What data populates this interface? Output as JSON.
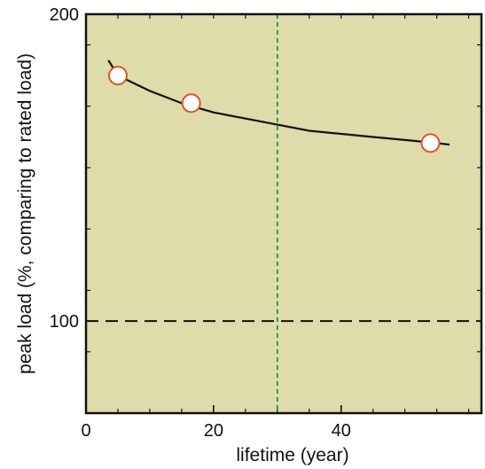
{
  "chart_data": {
    "type": "line",
    "xlabel": "lifetime (year)",
    "ylabel": "peak load (%, comparing to rated load)",
    "xlim": [
      0,
      62
    ],
    "ylim": [
      70,
      200
    ],
    "x_ticks": [
      {
        "value": 0,
        "label": "0"
      },
      {
        "value": 20,
        "label": "20"
      },
      {
        "value": 40,
        "label": "40"
      }
    ],
    "x_minor_step": 5,
    "y_ticks": [
      {
        "value": 100,
        "label": "100"
      },
      {
        "value": 200,
        "label": "200"
      }
    ],
    "y_minor_step": 20,
    "reference_lines": [
      {
        "orientation": "horizontal",
        "value": 100,
        "style": "dashed",
        "color": "#111111"
      },
      {
        "orientation": "vertical",
        "value": 30,
        "style": "dashed",
        "color": "#1a9b3c"
      }
    ],
    "series": [
      {
        "kind": "curve",
        "color": "#111111",
        "x": [
          3.5,
          5,
          10,
          15,
          20,
          25,
          30,
          35,
          40,
          45,
          50,
          55,
          57
        ],
        "y": [
          185,
          180,
          175,
          171,
          168,
          166,
          164,
          162,
          161,
          160,
          159,
          158,
          157.5
        ]
      },
      {
        "kind": "markers",
        "marker": "open-circle",
        "edge_color": "#e0541f",
        "fill_color": "#ffffff",
        "x": [
          5,
          16.5,
          54
        ],
        "y": [
          180,
          171,
          158
        ]
      }
    ],
    "plot_background": "#dddcaa",
    "grid": false,
    "legend": "none"
  }
}
